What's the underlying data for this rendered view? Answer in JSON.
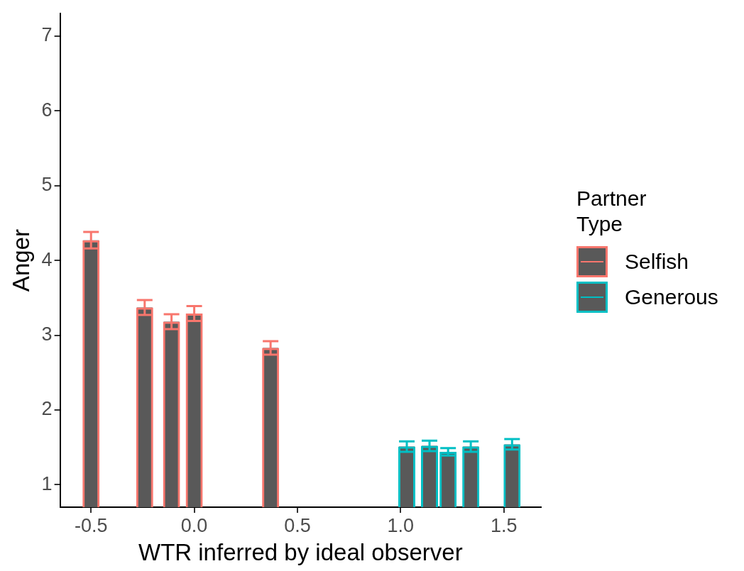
{
  "chart_data": {
    "type": "bar",
    "xlabel": "WTR inferred by ideal observer",
    "ylabel": "Anger",
    "legend_title": "Partner\nType",
    "legend": "right",
    "grid": false,
    "xlim": [
      -0.65,
      1.68
    ],
    "xticks": [
      -0.5,
      {
        "value": 0,
        "label": "0.0"
      },
      0.5,
      {
        "value": 1,
        "label": "1.0"
      },
      1.5
    ],
    "ylim": [
      0.7,
      7.3
    ],
    "yticks": [
      1,
      2,
      3,
      4,
      5,
      6,
      7
    ],
    "series": [
      {
        "name": "Selfish",
        "color": "#f8766d",
        "x": [
          -0.5,
          -0.24,
          -0.11,
          0.0,
          0.37
        ],
        "values": [
          4.27,
          3.37,
          3.18,
          3.29,
          2.83
        ],
        "errors": [
          0.11,
          0.1,
          0.1,
          0.1,
          0.09
        ]
      },
      {
        "name": "Generous",
        "color": "#00bfc4",
        "x": [
          1.03,
          1.14,
          1.23,
          1.34,
          1.54
        ],
        "values": [
          1.51,
          1.52,
          1.44,
          1.51,
          1.54
        ],
        "errors": [
          0.07,
          0.07,
          0.05,
          0.07,
          0.07
        ]
      }
    ]
  }
}
